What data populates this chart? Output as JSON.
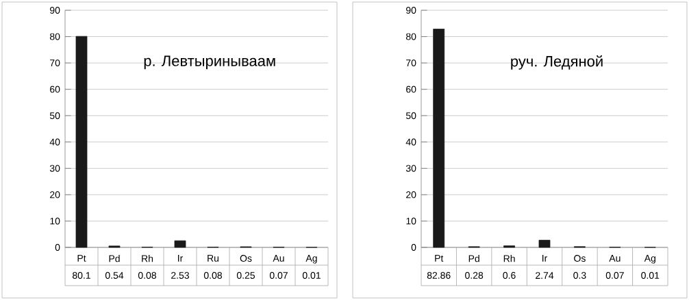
{
  "chart_data": [
    {
      "type": "bar",
      "title": "р. Левтыринываам",
      "categories": [
        "Pt",
        "Pd",
        "Rh",
        "Ir",
        "Ru",
        "Os",
        "Au",
        "Ag"
      ],
      "values": [
        80.1,
        0.54,
        0.08,
        2.53,
        0.08,
        0.25,
        0.07,
        0.01
      ],
      "color": "#1a1a1a",
      "ylim": [
        0,
        90
      ],
      "yticks": [
        0,
        10,
        20,
        30,
        40,
        50,
        60,
        70,
        80,
        90
      ],
      "grid": "y",
      "data_labels": true
    },
    {
      "type": "bar",
      "title": "руч. Ледяной",
      "categories": [
        "Pt",
        "Pd",
        "Rh",
        "Ir",
        "Os",
        "Au",
        "Ag"
      ],
      "values": [
        82.86,
        0.28,
        0.6,
        2.74,
        0.3,
        0.07,
        0.01
      ],
      "color": "#1a1a1a",
      "ylim": [
        0,
        90
      ],
      "yticks": [
        0,
        10,
        20,
        30,
        40,
        50,
        60,
        70,
        80,
        90
      ],
      "grid": "y",
      "data_labels": true
    }
  ]
}
